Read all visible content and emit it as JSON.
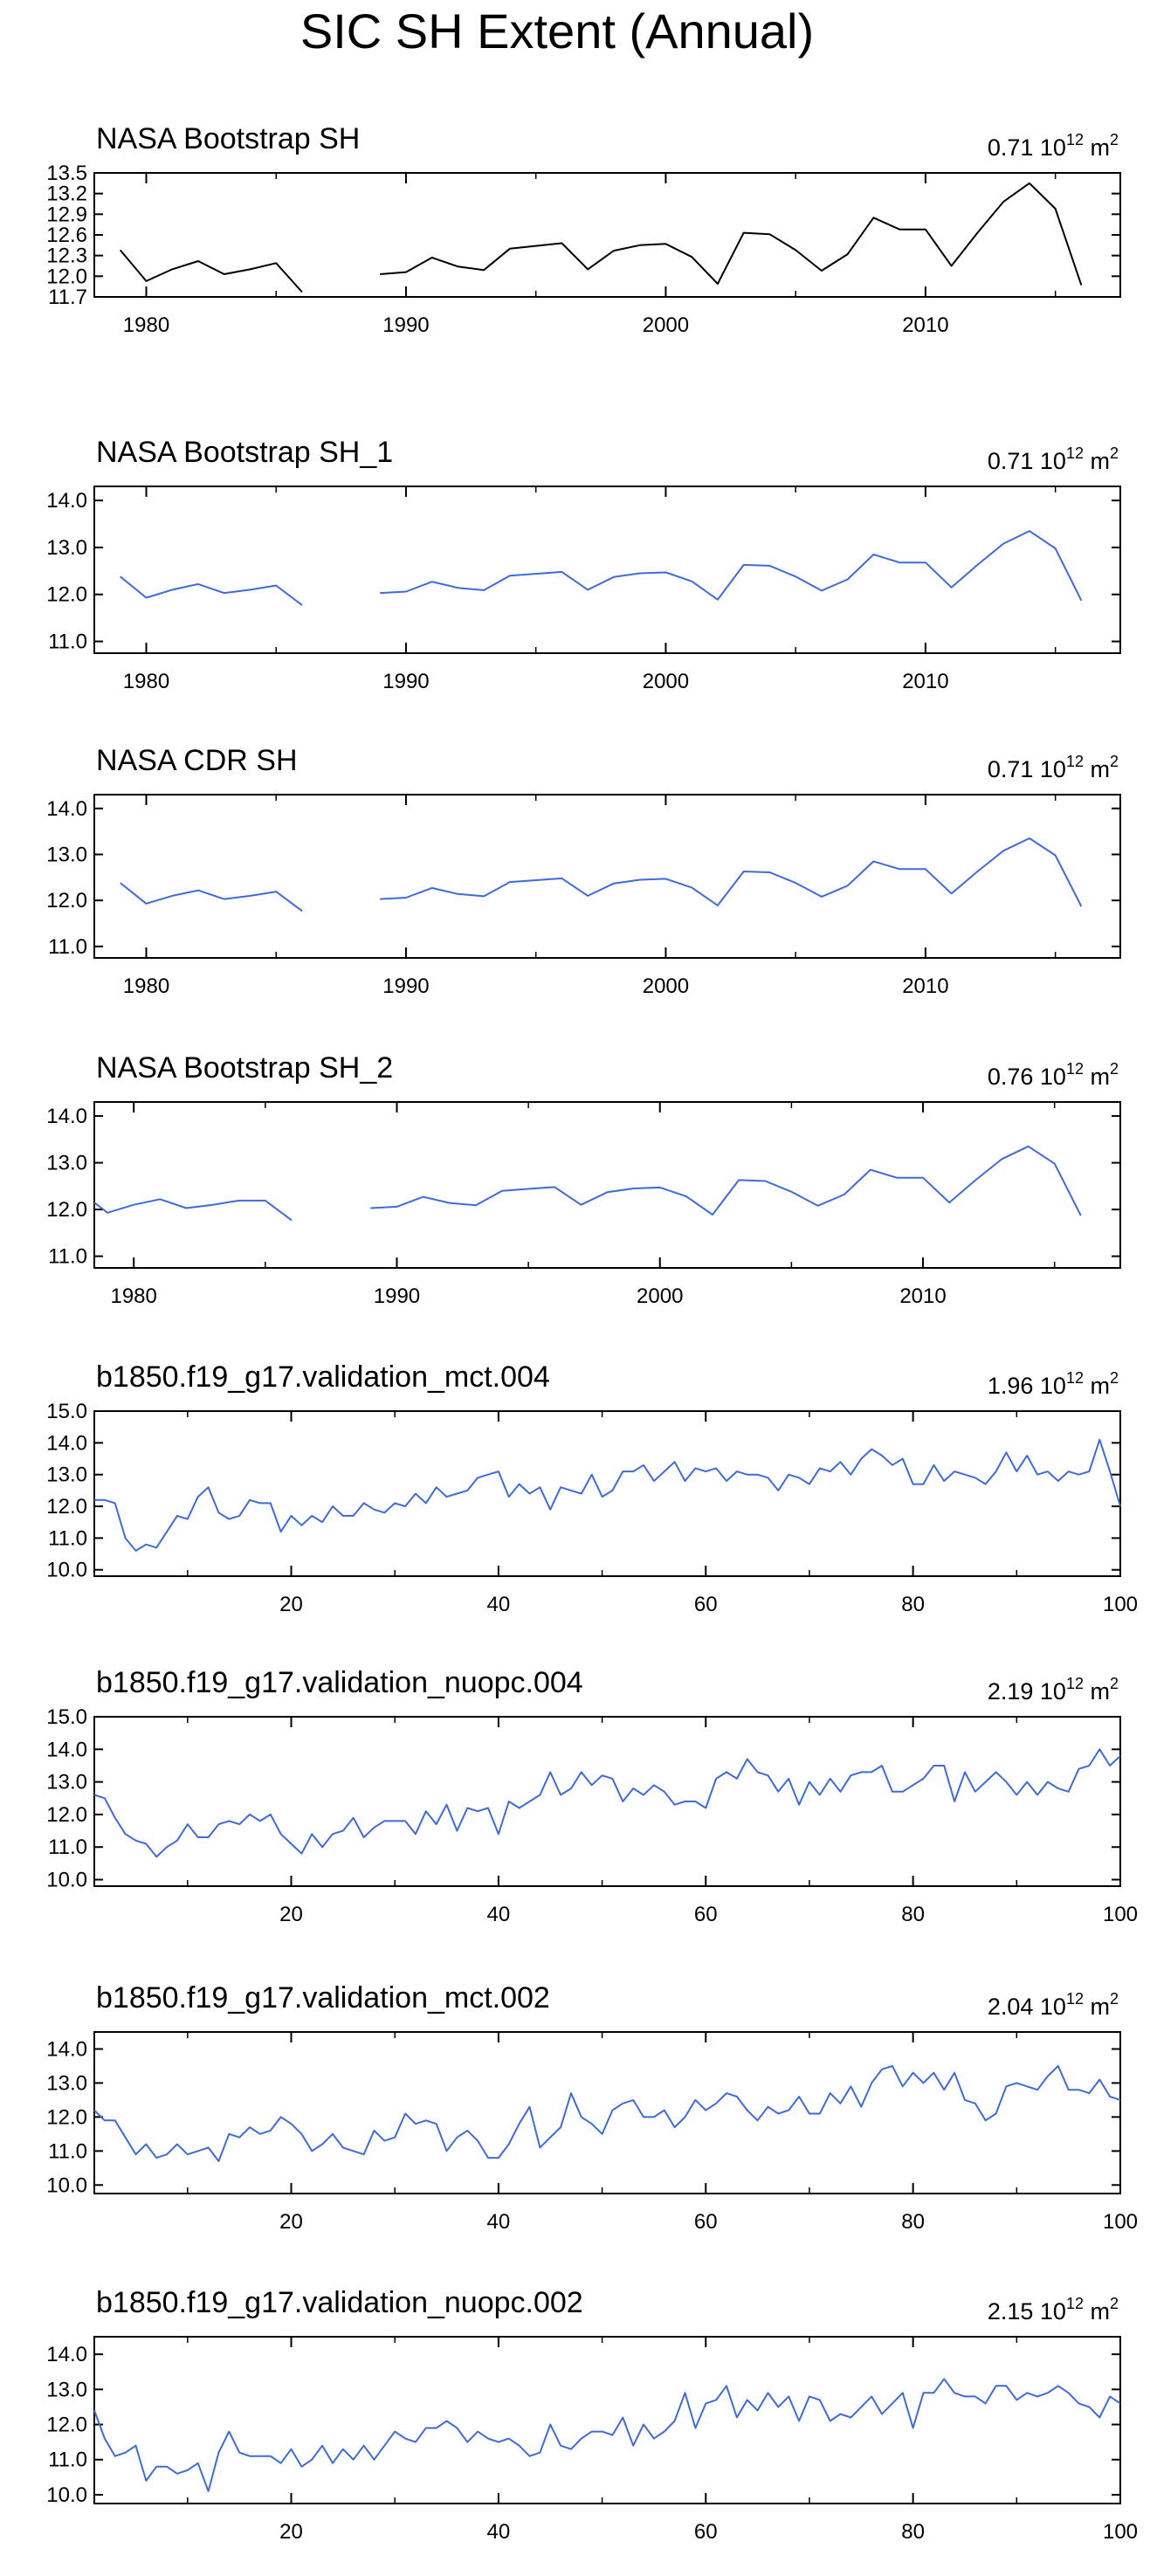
{
  "figure": {
    "title": "SIC SH Extent (Annual)",
    "units": {
      "base": "10",
      "exp": "12",
      "unit": "m",
      "unit_exp": "2"
    },
    "colors": {
      "obs": "#000000",
      "model": "#3f6bd6",
      "frame": "#000000"
    }
  },
  "chart_data": [
    {
      "type": "line",
      "title": "NASA Bootstrap SH",
      "stat_value": "0.71",
      "color": "#000000",
      "xlim": [
        1978,
        2017.5
      ],
      "ylim": [
        11.7,
        13.5
      ],
      "xticks": [
        1980,
        1990,
        2000,
        2010
      ],
      "xminor": [
        1985,
        1995,
        2005,
        2015
      ],
      "yticks": [
        11.7,
        12.0,
        12.3,
        12.6,
        12.9,
        13.2,
        13.5
      ],
      "ytick_labels": [
        "11.7",
        "12.0",
        "12.3",
        "12.6",
        "12.9",
        "13.2",
        "13.5"
      ],
      "x": [
        1979,
        1980,
        1981,
        1982,
        1983,
        1984,
        1985,
        1986,
        1987,
        1988,
        1989,
        1990,
        1991,
        1992,
        1993,
        1994,
        1995,
        1996,
        1997,
        1998,
        1999,
        2000,
        2001,
        2002,
        2003,
        2004,
        2005,
        2006,
        2007,
        2008,
        2009,
        2010,
        2011,
        2012,
        2013,
        2014,
        2015,
        2016
      ],
      "y": [
        12.38,
        11.93,
        12.1,
        12.22,
        12.03,
        12.1,
        12.19,
        11.77,
        null,
        null,
        12.03,
        12.06,
        12.27,
        12.14,
        12.09,
        12.4,
        12.44,
        12.48,
        12.1,
        12.37,
        12.45,
        12.47,
        12.28,
        11.89,
        12.63,
        12.61,
        12.38,
        12.08,
        12.32,
        12.85,
        12.68,
        12.68,
        12.15,
        12.63,
        13.08,
        13.35,
        12.98,
        11.87
      ]
    },
    {
      "type": "line",
      "title": "NASA Bootstrap SH_1",
      "stat_value": "0.71",
      "color": "#3f6bd6",
      "xlim": [
        1978,
        2017.5
      ],
      "ylim": [
        10.75,
        14.3
      ],
      "xticks": [
        1980,
        1990,
        2000,
        2010
      ],
      "xminor": [
        1985,
        1995,
        2005,
        2015
      ],
      "yticks": [
        11.0,
        12.0,
        13.0,
        14.0
      ],
      "ytick_labels": [
        "11.0",
        "12.0",
        "13.0",
        "14.0"
      ],
      "x": [
        1979,
        1980,
        1981,
        1982,
        1983,
        1984,
        1985,
        1986,
        1987,
        1988,
        1989,
        1990,
        1991,
        1992,
        1993,
        1994,
        1995,
        1996,
        1997,
        1998,
        1999,
        2000,
        2001,
        2002,
        2003,
        2004,
        2005,
        2006,
        2007,
        2008,
        2009,
        2010,
        2011,
        2012,
        2013,
        2014,
        2015,
        2016
      ],
      "y": [
        12.38,
        11.93,
        12.1,
        12.22,
        12.03,
        12.1,
        12.19,
        11.77,
        null,
        null,
        12.03,
        12.06,
        12.27,
        12.14,
        12.09,
        12.4,
        12.44,
        12.48,
        12.1,
        12.37,
        12.45,
        12.47,
        12.28,
        11.89,
        12.63,
        12.61,
        12.38,
        12.08,
        12.32,
        12.85,
        12.68,
        12.68,
        12.15,
        12.63,
        13.08,
        13.35,
        12.98,
        11.87
      ]
    },
    {
      "type": "line",
      "title": "NASA CDR SH",
      "stat_value": "0.71",
      "color": "#3f6bd6",
      "xlim": [
        1978,
        2017.5
      ],
      "ylim": [
        10.75,
        14.3
      ],
      "xticks": [
        1980,
        1990,
        2000,
        2010
      ],
      "xminor": [
        1985,
        1995,
        2005,
        2015
      ],
      "yticks": [
        11.0,
        12.0,
        13.0,
        14.0
      ],
      "ytick_labels": [
        "11.0",
        "12.0",
        "13.0",
        "14.0"
      ],
      "x": [
        1979,
        1980,
        1981,
        1982,
        1983,
        1984,
        1985,
        1986,
        1987,
        1988,
        1989,
        1990,
        1991,
        1992,
        1993,
        1994,
        1995,
        1996,
        1997,
        1998,
        1999,
        2000,
        2001,
        2002,
        2003,
        2004,
        2005,
        2006,
        2007,
        2008,
        2009,
        2010,
        2011,
        2012,
        2013,
        2014,
        2015,
        2016
      ],
      "y": [
        12.38,
        11.93,
        12.1,
        12.22,
        12.03,
        12.1,
        12.19,
        11.77,
        null,
        null,
        12.03,
        12.06,
        12.27,
        12.14,
        12.09,
        12.4,
        12.44,
        12.48,
        12.1,
        12.37,
        12.45,
        12.47,
        12.28,
        11.89,
        12.63,
        12.61,
        12.38,
        12.08,
        12.32,
        12.85,
        12.68,
        12.68,
        12.15,
        12.63,
        13.08,
        13.35,
        12.98,
        11.87
      ]
    },
    {
      "type": "line",
      "title": "NASA Bootstrap SH_2",
      "stat_value": "0.76",
      "color": "#3f6bd6",
      "xlim": [
        1978.5,
        2017.5
      ],
      "ylim": [
        10.75,
        14.3
      ],
      "xticks": [
        1980,
        1990,
        2000,
        2010
      ],
      "xminor": [
        1985,
        1995,
        2005,
        2015
      ],
      "yticks": [
        11.0,
        12.0,
        13.0,
        14.0
      ],
      "ytick_labels": [
        "11.0",
        "12.0",
        "13.0",
        "14.0"
      ],
      "x": [
        1978.5,
        1979,
        1980,
        1981,
        1982,
        1983,
        1984,
        1985,
        1986,
        1987,
        1988,
        1989,
        1990,
        1991,
        1992,
        1993,
        1994,
        1995,
        1996,
        1997,
        1998,
        1999,
        2000,
        2001,
        2002,
        2003,
        2004,
        2005,
        2006,
        2007,
        2008,
        2009,
        2010,
        2011,
        2012,
        2013,
        2014,
        2015,
        2016
      ],
      "y": [
        12.15,
        11.93,
        12.1,
        12.22,
        12.03,
        12.1,
        12.19,
        12.19,
        11.77,
        null,
        null,
        12.03,
        12.06,
        12.27,
        12.14,
        12.09,
        12.4,
        12.44,
        12.48,
        12.1,
        12.37,
        12.45,
        12.47,
        12.28,
        11.89,
        12.63,
        12.61,
        12.38,
        12.08,
        12.32,
        12.85,
        12.68,
        12.68,
        12.15,
        12.63,
        13.08,
        13.35,
        12.98,
        11.87
      ]
    },
    {
      "type": "line",
      "title": "b1850.f19_g17.validation_mct.004",
      "stat_value": "1.96",
      "color": "#3f6bd6",
      "xlim": [
        1,
        100
      ],
      "ylim": [
        9.8,
        15.0
      ],
      "xticks": [
        20,
        40,
        60,
        80,
        100
      ],
      "xminor": [
        10,
        30,
        50,
        70,
        90
      ],
      "yticks": [
        10.0,
        11.0,
        12.0,
        13.0,
        14.0,
        15.0
      ],
      "ytick_labels": [
        "10.0",
        "11.0",
        "12.0",
        "13.0",
        "14.0",
        "15.0"
      ],
      "x": "1..100",
      "y": [
        12.2,
        12.2,
        12.1,
        11.0,
        10.6,
        10.8,
        10.7,
        11.2,
        11.7,
        11.6,
        12.3,
        12.6,
        11.8,
        11.6,
        11.7,
        12.2,
        12.1,
        12.1,
        11.2,
        11.7,
        11.4,
        11.7,
        11.5,
        12.0,
        11.7,
        11.7,
        12.1,
        11.9,
        11.8,
        12.1,
        12.0,
        12.4,
        12.1,
        12.6,
        12.3,
        12.4,
        12.5,
        12.9,
        13.0,
        13.1,
        12.3,
        12.7,
        12.4,
        12.6,
        11.9,
        12.6,
        12.5,
        12.4,
        13.0,
        12.3,
        12.5,
        13.1,
        13.1,
        13.3,
        12.8,
        13.1,
        13.4,
        12.8,
        13.2,
        13.1,
        13.2,
        12.8,
        13.1,
        13.0,
        13.0,
        12.9,
        12.5,
        13.0,
        12.9,
        12.7,
        13.2,
        13.1,
        13.4,
        13.0,
        13.5,
        13.8,
        13.6,
        13.3,
        13.5,
        12.7,
        12.7,
        13.3,
        12.8,
        13.1,
        13.0,
        12.9,
        12.7,
        13.1,
        13.7,
        13.1,
        13.6,
        13.0,
        13.1,
        12.8,
        13.1,
        13.0,
        13.1,
        14.1,
        13.1,
        12.0
      ]
    },
    {
      "type": "line",
      "title": "b1850.f19_g17.validation_nuopc.004",
      "stat_value": "2.19",
      "color": "#3f6bd6",
      "xlim": [
        1,
        100
      ],
      "ylim": [
        9.8,
        15.0
      ],
      "xticks": [
        20,
        40,
        60,
        80,
        100
      ],
      "xminor": [
        10,
        30,
        50,
        70,
        90
      ],
      "yticks": [
        10.0,
        11.0,
        12.0,
        13.0,
        14.0,
        15.0
      ],
      "ytick_labels": [
        "10.0",
        "11.0",
        "12.0",
        "13.0",
        "14.0",
        "15.0"
      ],
      "x": "1..100",
      "y": [
        12.6,
        12.5,
        11.9,
        11.4,
        11.2,
        11.1,
        10.7,
        11.0,
        11.2,
        11.7,
        11.3,
        11.3,
        11.7,
        11.8,
        11.7,
        12.0,
        11.8,
        12.0,
        11.4,
        11.1,
        10.8,
        11.4,
        11.0,
        11.4,
        11.5,
        11.9,
        11.3,
        11.6,
        11.8,
        11.8,
        11.8,
        11.4,
        12.1,
        11.7,
        12.3,
        11.5,
        12.2,
        12.1,
        12.2,
        11.4,
        12.4,
        12.2,
        12.4,
        12.6,
        13.3,
        12.6,
        12.8,
        13.3,
        12.9,
        13.2,
        13.1,
        12.4,
        12.8,
        12.6,
        12.9,
        12.7,
        12.3,
        12.4,
        12.4,
        12.2,
        13.1,
        13.3,
        13.1,
        13.7,
        13.3,
        13.2,
        12.7,
        13.1,
        12.3,
        13.0,
        12.6,
        13.1,
        12.7,
        13.2,
        13.3,
        13.3,
        13.5,
        12.7,
        12.7,
        12.9,
        13.1,
        13.5,
        13.5,
        12.4,
        13.3,
        12.7,
        13.0,
        13.3,
        13.0,
        12.6,
        13.0,
        12.6,
        13.0,
        12.8,
        12.7,
        13.4,
        13.5,
        14.0,
        13.5,
        13.8
      ]
    },
    {
      "type": "line",
      "title": "b1850.f19_g17.validation_mct.002",
      "stat_value": "2.04",
      "color": "#3f6bd6",
      "xlim": [
        1,
        100
      ],
      "ylim": [
        9.75,
        14.5
      ],
      "xticks": [
        20,
        40,
        60,
        80,
        100
      ],
      "xminor": [
        10,
        30,
        50,
        70,
        90
      ],
      "yticks": [
        10.0,
        11.0,
        12.0,
        13.0,
        14.0
      ],
      "ytick_labels": [
        "10.0",
        "11.0",
        "12.0",
        "13.0",
        "14.0"
      ],
      "x": "1..100",
      "y": [
        12.2,
        11.9,
        11.9,
        11.4,
        10.9,
        11.2,
        10.8,
        10.9,
        11.2,
        10.9,
        11.0,
        11.1,
        10.7,
        11.5,
        11.4,
        11.7,
        11.5,
        11.6,
        12.0,
        11.8,
        11.5,
        11.0,
        11.2,
        11.5,
        11.1,
        11.0,
        10.9,
        11.6,
        11.3,
        11.4,
        12.1,
        11.8,
        11.9,
        11.8,
        11.0,
        11.4,
        11.6,
        11.3,
        10.8,
        10.8,
        11.2,
        11.8,
        12.3,
        11.1,
        11.4,
        11.7,
        12.7,
        12.0,
        11.8,
        11.5,
        12.2,
        12.4,
        12.5,
        12.0,
        12.0,
        12.2,
        11.7,
        12.0,
        12.5,
        12.2,
        12.4,
        12.7,
        12.6,
        12.2,
        11.9,
        12.3,
        12.1,
        12.2,
        12.6,
        12.1,
        12.1,
        12.7,
        12.4,
        12.9,
        12.3,
        13.0,
        13.4,
        13.5,
        12.9,
        13.3,
        13.0,
        13.3,
        12.8,
        13.3,
        12.5,
        12.4,
        11.9,
        12.1,
        12.9,
        13.0,
        12.9,
        12.8,
        13.2,
        13.5,
        12.8,
        12.8,
        12.7,
        13.1,
        12.6,
        12.5
      ]
    },
    {
      "type": "line",
      "title": "b1850.f19_g17.validation_nuopc.002",
      "stat_value": "2.15",
      "color": "#3f6bd6",
      "xlim": [
        1,
        100
      ],
      "ylim": [
        9.75,
        14.5
      ],
      "xticks": [
        20,
        40,
        60,
        80,
        100
      ],
      "xminor": [
        10,
        30,
        50,
        70,
        90
      ],
      "yticks": [
        10.0,
        11.0,
        12.0,
        13.0,
        14.0
      ],
      "ytick_labels": [
        "10.0",
        "11.0",
        "12.0",
        "13.0",
        "14.0"
      ],
      "x": "1..100",
      "y": [
        12.4,
        11.6,
        11.1,
        11.2,
        11.4,
        10.4,
        10.8,
        10.8,
        10.6,
        10.7,
        10.9,
        10.1,
        11.2,
        11.8,
        11.2,
        11.1,
        11.1,
        11.1,
        10.9,
        11.3,
        10.8,
        11.0,
        11.4,
        10.9,
        11.3,
        11.0,
        11.4,
        11.0,
        11.4,
        11.8,
        11.6,
        11.5,
        11.9,
        11.9,
        12.1,
        11.9,
        11.5,
        11.8,
        11.6,
        11.5,
        11.6,
        11.4,
        11.1,
        11.2,
        12.0,
        11.4,
        11.3,
        11.6,
        11.8,
        11.8,
        11.7,
        12.2,
        11.4,
        12.0,
        11.6,
        11.8,
        12.1,
        12.9,
        11.9,
        12.6,
        12.7,
        13.1,
        12.2,
        12.7,
        12.4,
        12.9,
        12.5,
        12.8,
        12.1,
        12.8,
        12.7,
        12.1,
        12.3,
        12.2,
        12.5,
        12.8,
        12.3,
        12.6,
        12.9,
        11.9,
        12.9,
        12.9,
        13.3,
        12.9,
        12.8,
        12.8,
        12.6,
        13.1,
        13.1,
        12.7,
        12.9,
        12.8,
        12.9,
        13.1,
        12.9,
        12.6,
        12.5,
        12.2,
        12.8,
        12.6
      ]
    }
  ]
}
